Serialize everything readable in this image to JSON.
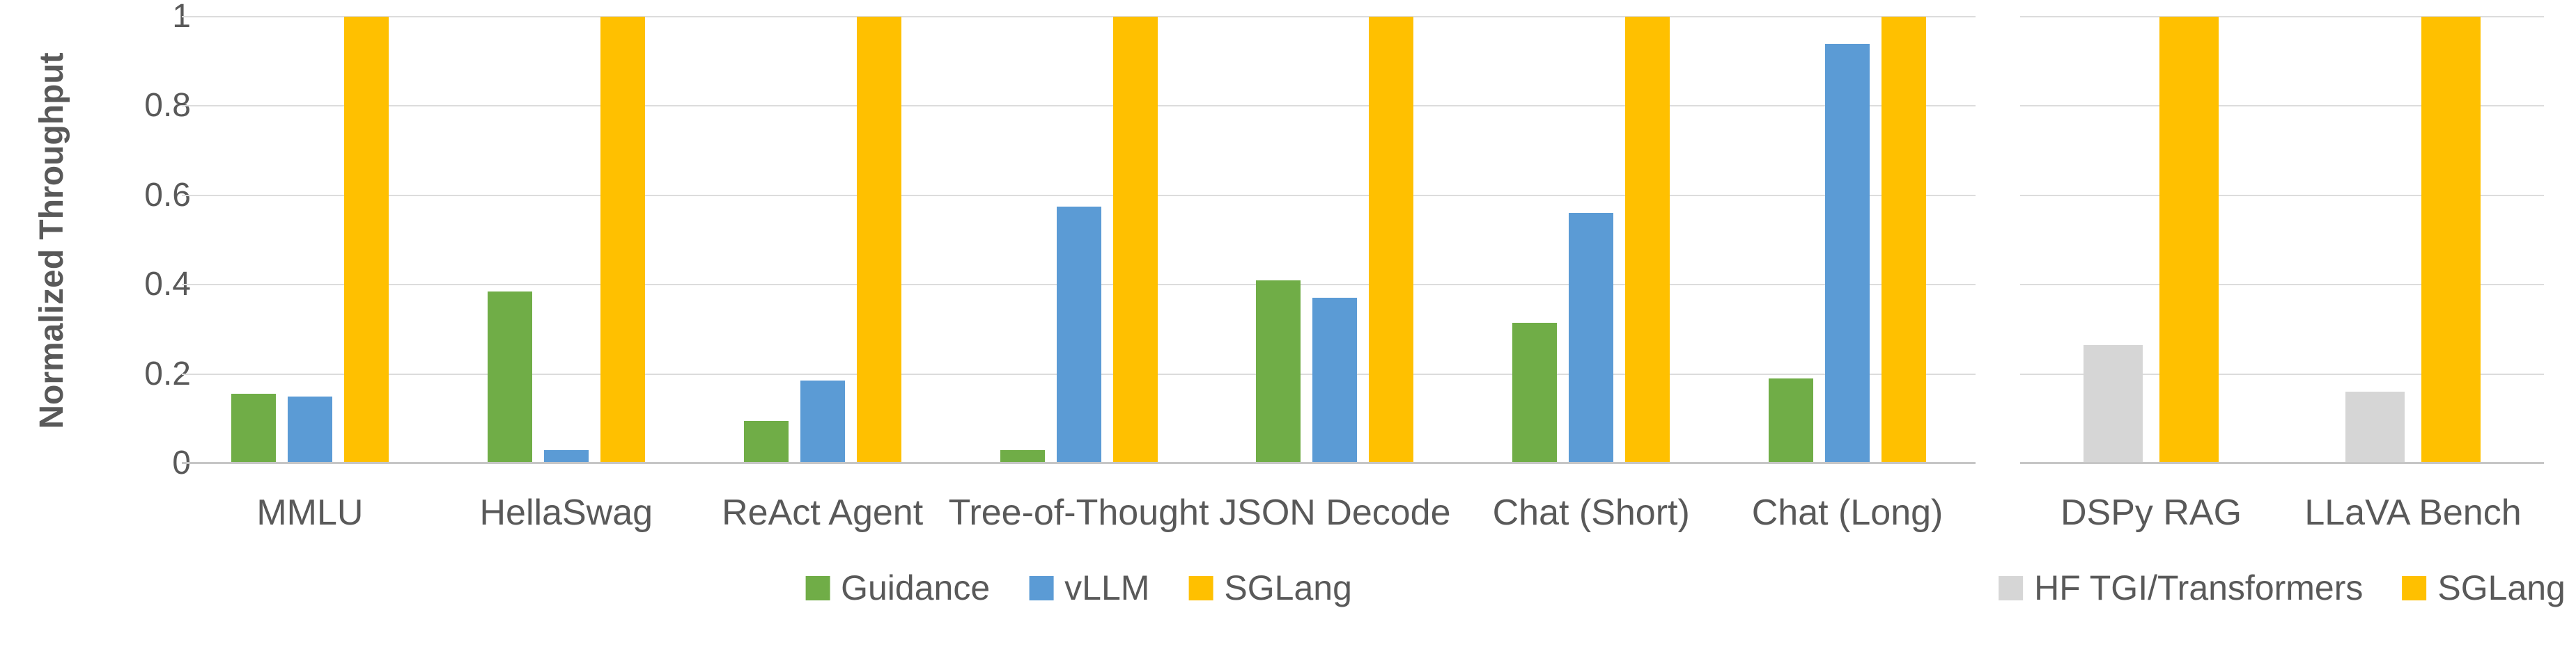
{
  "figure": {
    "background_color": "#ffffff",
    "text_color": "#595959",
    "gridline_color": "#dcdcdc",
    "axis_line_color": "#c6c6c6"
  },
  "y_axis": {
    "title": "Normalized Throughput",
    "ticks": [
      "0",
      "0.2",
      "0.4",
      "0.6",
      "0.8",
      "1"
    ],
    "tick_values": [
      0,
      0.2,
      0.4,
      0.6,
      0.8,
      1
    ],
    "min": 0,
    "max": 1
  },
  "chart_data": [
    {
      "type": "bar",
      "title": "",
      "xlabel": "",
      "ylabel": "Normalized Throughput",
      "ylim": [
        0,
        1
      ],
      "grid": true,
      "legend_position": "bottom",
      "categories": [
        "MMLU",
        "HellaSwag",
        "ReAct Agent",
        "Tree-of-Thought",
        "JSON Decode",
        "Chat (Short)",
        "Chat (Long)"
      ],
      "series": [
        {
          "name": "Guidance",
          "color": "#70AD47",
          "values": [
            0.155,
            0.385,
            0.095,
            0.03,
            0.41,
            0.315,
            0.19
          ]
        },
        {
          "name": "vLLM",
          "color": "#5B9BD5",
          "values": [
            0.15,
            0.03,
            0.185,
            0.575,
            0.37,
            0.56,
            0.94
          ]
        },
        {
          "name": "SGLang",
          "color": "#FFC000",
          "values": [
            1,
            1,
            1,
            1,
            1,
            1,
            1
          ]
        }
      ]
    },
    {
      "type": "bar",
      "title": "",
      "xlabel": "",
      "ylabel": "",
      "ylim": [
        0,
        1
      ],
      "grid": true,
      "legend_position": "bottom",
      "categories": [
        "DSPy RAG",
        "LLaVA Bench"
      ],
      "series": [
        {
          "name": "HF TGI/Transformers",
          "color": "#D6D6D6",
          "values": [
            0.265,
            0.16
          ]
        },
        {
          "name": "SGLang",
          "color": "#FFC000",
          "values": [
            1,
            1
          ]
        }
      ]
    }
  ]
}
